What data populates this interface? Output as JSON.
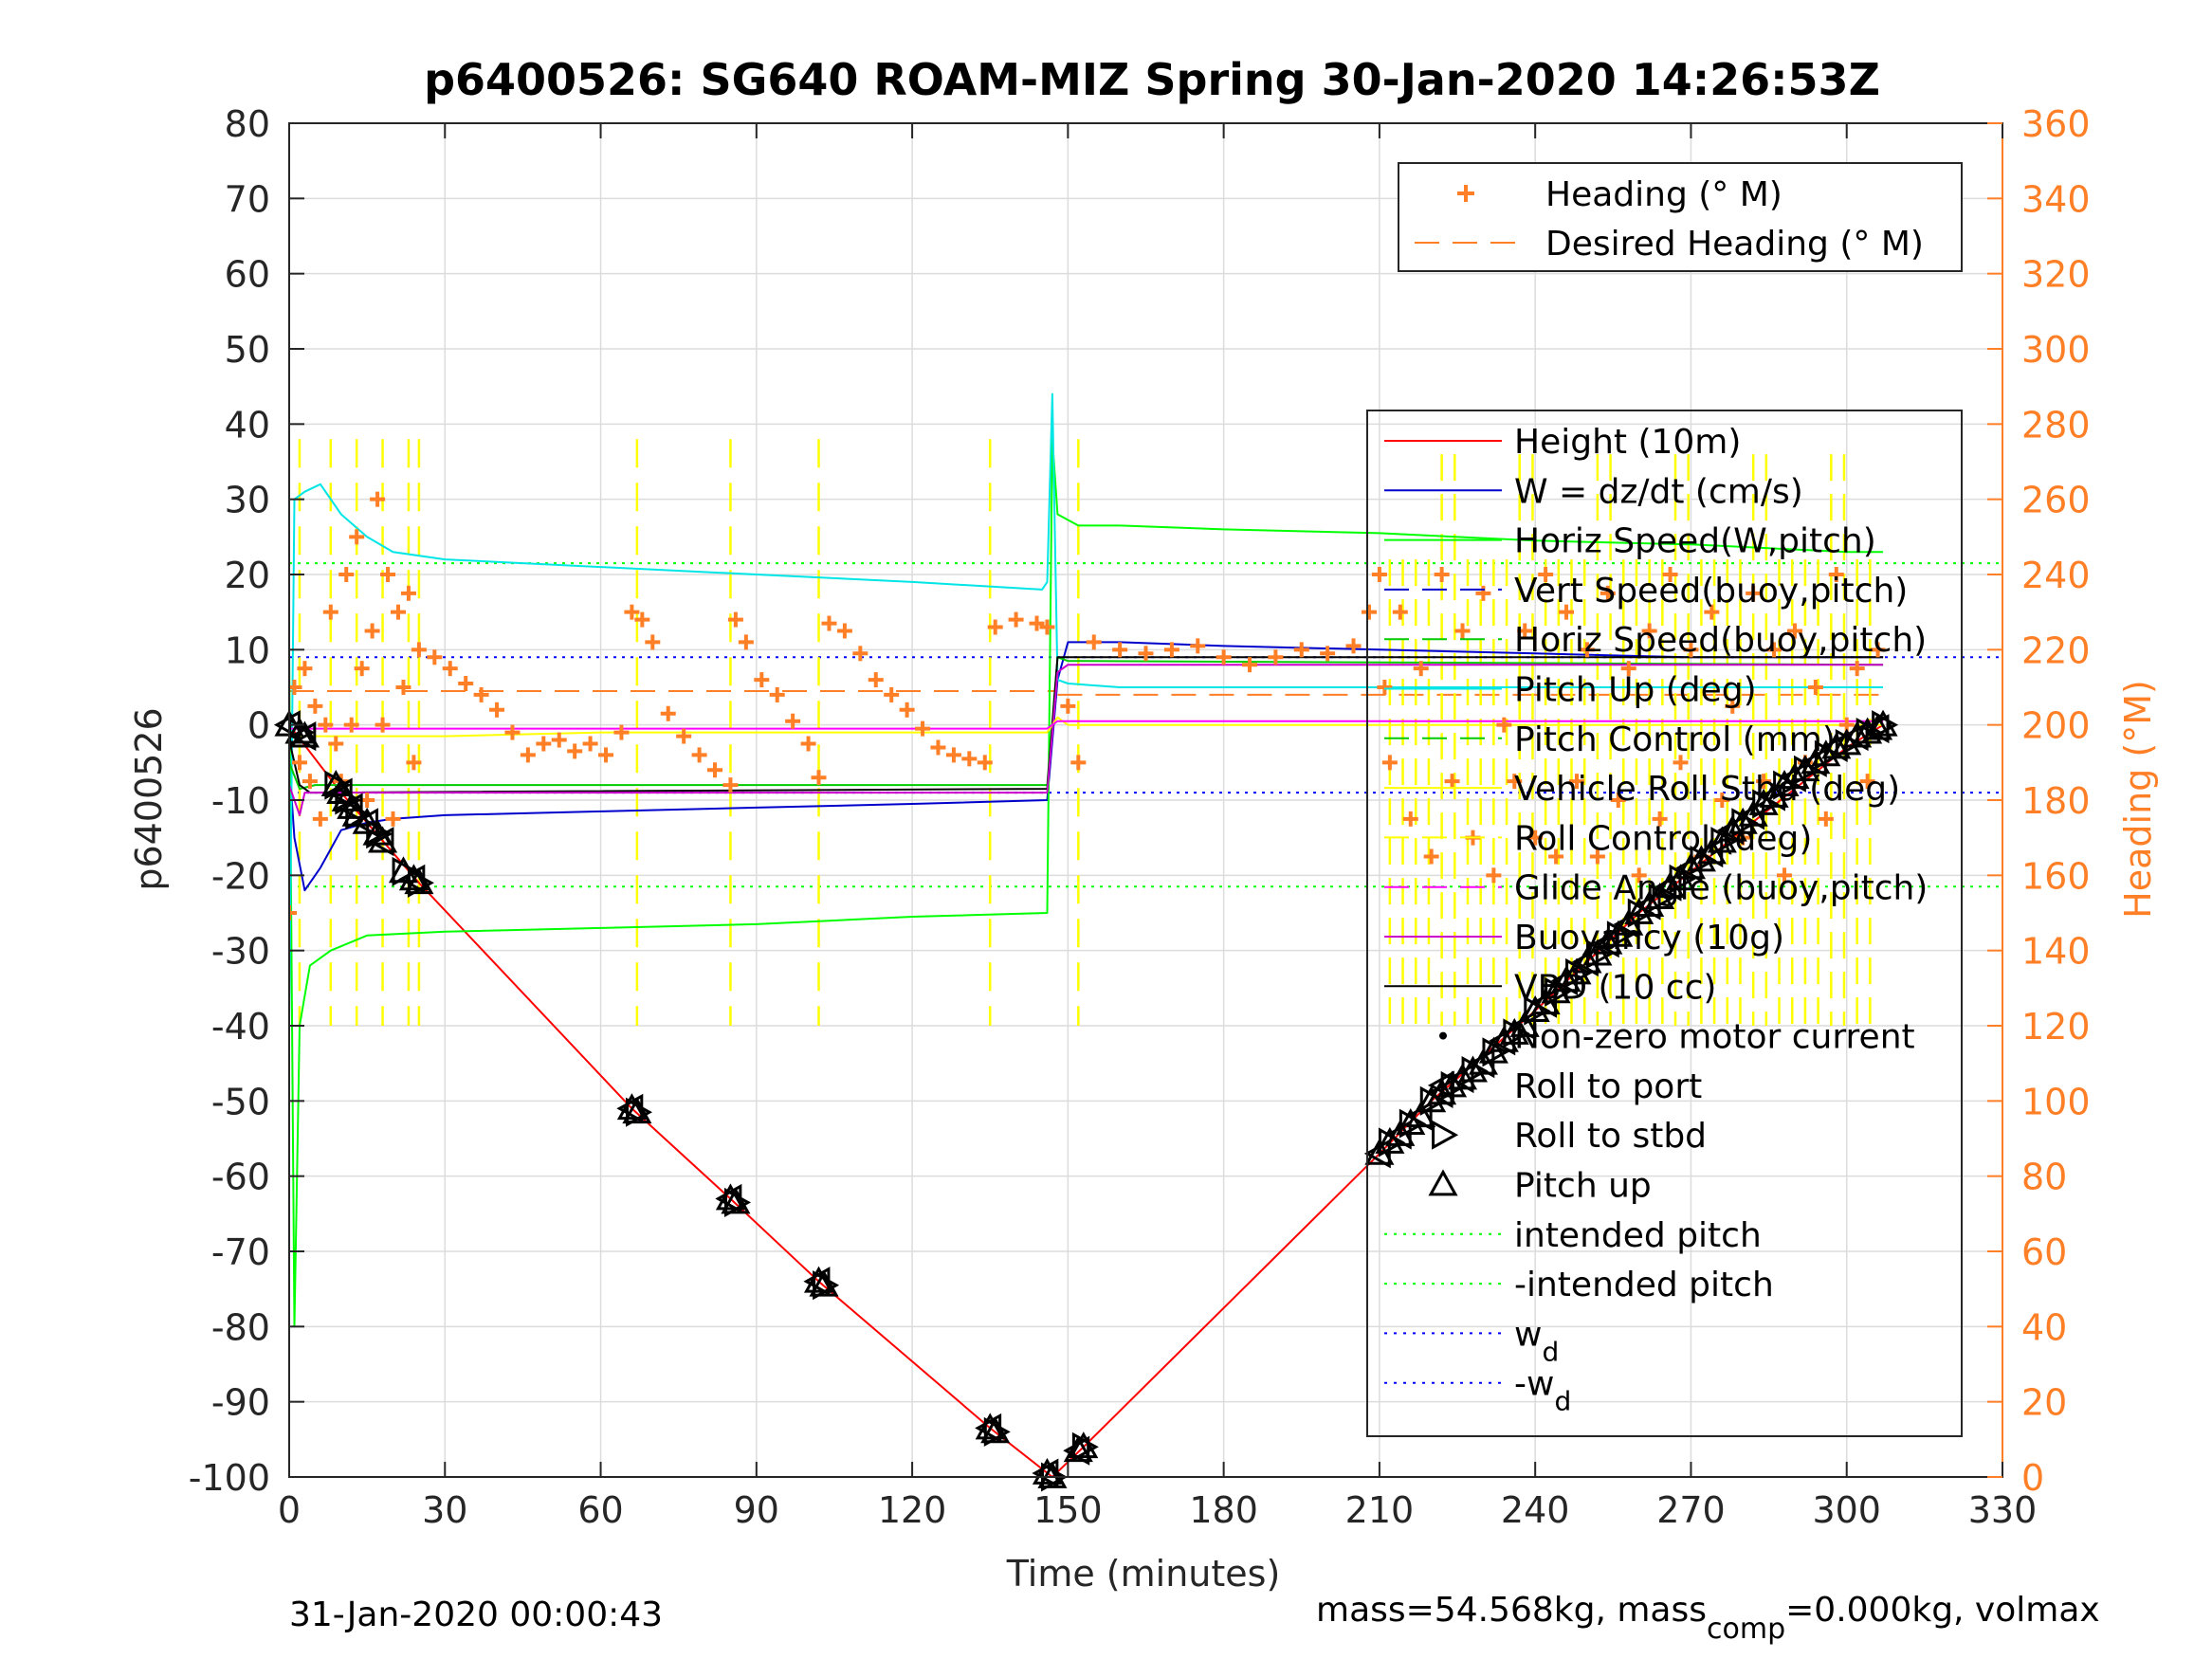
{
  "chart_data": {
    "type": "line",
    "title": "p6400526: SG640 ROAM-MIZ Spring 30-Jan-2020 14:26:53Z",
    "xlabel": "Time (minutes)",
    "ylabel_left": "p6400526",
    "ylabel_right": "Heading (°M)",
    "xlim": [
      0,
      330
    ],
    "ylim_left": [
      -100,
      80
    ],
    "ylim_right": [
      0,
      360
    ],
    "x_ticks": [
      0,
      30,
      60,
      90,
      120,
      150,
      180,
      210,
      240,
      270,
      300,
      330
    ],
    "y_ticks_left": [
      -100,
      -90,
      -80,
      -70,
      -60,
      -50,
      -40,
      -30,
      -20,
      -10,
      0,
      10,
      20,
      30,
      40,
      50,
      60,
      70,
      80
    ],
    "y_ticks_right": [
      0,
      20,
      40,
      60,
      80,
      100,
      120,
      140,
      160,
      180,
      200,
      220,
      240,
      260,
      280,
      300,
      320,
      340,
      360
    ],
    "grid": true,
    "footer_left": "31-Jan-2020 00:00:43",
    "footer_right": {
      "prefix": "mass=54.568kg, mass",
      "sub": "comp",
      "suffix": "=0.000kg, volmax"
    },
    "legend_top": [
      {
        "label": "Heading (° M)",
        "color": "#ff7f27",
        "style": "plus"
      },
      {
        "label": "Desired Heading (° M)",
        "color": "#ff7f27",
        "style": "dashed"
      }
    ],
    "legend_main": [
      {
        "label": "Height (10m)",
        "color": "#ff0000",
        "style": "solid"
      },
      {
        "label": "W = dz/dt (cm/s)",
        "color": "#0000cc",
        "style": "solid"
      },
      {
        "label": "Horiz Speed(W,pitch)",
        "color": "#00ff00",
        "style": "solid"
      },
      {
        "label": "Vert Speed(buoy,pitch)",
        "color": "#0000cc",
        "style": "dashed"
      },
      {
        "label": "Horiz Speed(buoy,pitch)",
        "color": "#00cc00",
        "style": "dashed"
      },
      {
        "label": "Pitch Up (deg)",
        "color": "#00e5e5",
        "style": "solid"
      },
      {
        "label": "Pitch Control (mm)",
        "color": "#00cc00",
        "style": "dashed"
      },
      {
        "label": "Vehicle Roll Stbd (deg)",
        "color": "#ffff00",
        "style": "solid"
      },
      {
        "label": "Roll Control (deg)",
        "color": "#ffff00",
        "style": "dashed"
      },
      {
        "label": "Glide Angle (buoy,pitch)",
        "color": "#ff00ff",
        "style": "dashed"
      },
      {
        "label": "Buoyancy (10g)",
        "color": "#cc00cc",
        "style": "solid"
      },
      {
        "label": "VBD (10 cc)",
        "color": "#000000",
        "style": "solid"
      },
      {
        "label": "Non-zero motor current",
        "color": "#000000",
        "style": "dot"
      },
      {
        "label": "Roll to port",
        "color": "#000000",
        "style": "tri-left"
      },
      {
        "label": "Roll to stbd",
        "color": "#000000",
        "style": "tri-right"
      },
      {
        "label": "Pitch up",
        "color": "#000000",
        "style": "tri-up"
      },
      {
        "label": "intended pitch",
        "color": "#00ff00",
        "style": "dotted"
      },
      {
        "label": "-intended pitch",
        "color": "#00ff00",
        "style": "dotted"
      },
      {
        "label": "w",
        "sub": "d",
        "color": "#0000ff",
        "style": "dotted"
      },
      {
        "label": "-w",
        "sub": "d",
        "color": "#0000ff",
        "style": "dotted"
      }
    ],
    "reference_lines": {
      "intended_pitch": 21.5,
      "minus_intended_pitch": -21.5,
      "w_d": 9,
      "minus_w_d": -9
    },
    "series": [
      {
        "key": "height",
        "name": "Height (10m)",
        "color": "#ff0000",
        "x": [
          0,
          10,
          25,
          66,
          85,
          102,
          135,
          147,
          153,
          210,
          220,
          240,
          260,
          280,
          300,
          307
        ],
        "y": [
          0,
          -9,
          -21,
          -51,
          -63,
          -74,
          -93.5,
          -100,
          -96,
          -57,
          -50,
          -38,
          -25,
          -14,
          -3,
          0
        ]
      },
      {
        "key": "w",
        "name": "W = dz/dt (cm/s)",
        "color": "#0000cc",
        "x": [
          0,
          1,
          3,
          6,
          10,
          15,
          20,
          30,
          60,
          90,
          120,
          146,
          148,
          150,
          160,
          180,
          210,
          240,
          270,
          300,
          307
        ],
        "y": [
          -5,
          -15,
          -22,
          -19,
          -14,
          -13,
          -12.5,
          -12,
          -11.5,
          -11,
          -10.5,
          -10,
          6,
          11,
          11,
          10.5,
          10,
          9.5,
          9,
          9,
          9
        ]
      },
      {
        "key": "horiz_speed",
        "name": "Horiz Speed(W,pitch)",
        "color": "#00ff00",
        "x": [
          0,
          1,
          2,
          4,
          8,
          15,
          30,
          60,
          90,
          120,
          146,
          147,
          148,
          152,
          160,
          180,
          210,
          240,
          270,
          300,
          307
        ],
        "y": [
          10,
          -80,
          -40,
          -32,
          -30,
          -28,
          -27.5,
          -27,
          -26.5,
          -25.5,
          -25,
          38,
          28,
          26.5,
          26.5,
          26,
          25.5,
          24.5,
          24,
          23,
          23
        ]
      },
      {
        "key": "pitch_up",
        "name": "Pitch Up (deg)",
        "color": "#00e5e5",
        "x": [
          0,
          1,
          3,
          6,
          10,
          15,
          20,
          30,
          60,
          90,
          120,
          145,
          146,
          147,
          148,
          150,
          160,
          180,
          210,
          240,
          270,
          300,
          307
        ],
        "y": [
          -40,
          30,
          31,
          32,
          28,
          25,
          23,
          22,
          21,
          20,
          19,
          18,
          19,
          44,
          6,
          5.5,
          5,
          5,
          5,
          5,
          5,
          5,
          5
        ]
      },
      {
        "key": "pitch_control",
        "name": "Pitch Control (mm)",
        "color": "#00cc00",
        "x": [
          0,
          2,
          5,
          146,
          148,
          150,
          307
        ],
        "y": [
          -5,
          -8.5,
          -8,
          -8,
          9,
          8.5,
          8
        ]
      },
      {
        "key": "vbd",
        "name": "VBD (10 cc)",
        "color": "#000000",
        "x": [
          0,
          2,
          4,
          146,
          147,
          148,
          307
        ],
        "y": [
          -2,
          -8,
          -9,
          -8.5,
          0,
          9,
          9
        ]
      },
      {
        "key": "buoyancy",
        "name": "Buoyancy (10g)",
        "color": "#cc00cc",
        "x": [
          0,
          2,
          3,
          146,
          148,
          150,
          307
        ],
        "y": [
          -8,
          -12,
          -9,
          -9,
          7,
          8,
          8
        ]
      },
      {
        "key": "roll_stbd",
        "name": "Vehicle Roll Stbd (deg)",
        "color": "#ffff00",
        "x": [
          0,
          30,
          60,
          90,
          120,
          146,
          148,
          150,
          180,
          210,
          240,
          270,
          300,
          307
        ],
        "y": [
          -1.5,
          -1.5,
          -1,
          -1,
          -1,
          -1,
          1,
          0,
          0,
          0,
          0,
          0,
          0,
          0
        ]
      },
      {
        "key": "glide_angle",
        "name": "Glide Angle (buoy,pitch)",
        "color": "#ff00ff",
        "x": [
          0,
          146,
          148,
          307
        ],
        "y": [
          -0.5,
          -0.5,
          0.5,
          0.5
        ]
      }
    ],
    "heading_samples": {
      "x": [
        0,
        1,
        2,
        3,
        4,
        5,
        6,
        7,
        8,
        9,
        10,
        11,
        12,
        13,
        14,
        15,
        16,
        17,
        18,
        19,
        20,
        21,
        22,
        23,
        24,
        25,
        28,
        31,
        34,
        37,
        40,
        43,
        46,
        49,
        52,
        55,
        58,
        61,
        64,
        66,
        68,
        70,
        73,
        76,
        79,
        82,
        85,
        86,
        88,
        91,
        94,
        97,
        100,
        102,
        104,
        107,
        110,
        113,
        116,
        119,
        122,
        125,
        128,
        131,
        134,
        136,
        140,
        144,
        146,
        150,
        152,
        155,
        160,
        165,
        170,
        175,
        180,
        185,
        190,
        195,
        200,
        205,
        208,
        210,
        211,
        212,
        214,
        216,
        218,
        220,
        222,
        224,
        226,
        228,
        230,
        232,
        234,
        236,
        238,
        240,
        242,
        244,
        246,
        248,
        250,
        252,
        254,
        256,
        258,
        260,
        262,
        264,
        266,
        268,
        270,
        272,
        274,
        276,
        278,
        280,
        282,
        284,
        286,
        288,
        290,
        292,
        294,
        296,
        298,
        300,
        302,
        304,
        306
      ],
      "y": [
        150,
        210,
        190,
        215,
        185,
        205,
        175,
        200,
        230,
        195,
        185,
        240,
        200,
        250,
        215,
        180,
        225,
        260,
        200,
        240,
        175,
        230,
        210,
        235,
        190,
        220,
        218,
        215,
        211,
        208,
        204,
        198,
        192,
        195,
        196,
        193,
        195,
        192,
        198,
        230,
        228,
        222,
        203,
        197,
        192,
        188,
        184,
        228,
        222,
        212,
        208,
        201,
        195,
        186,
        227,
        225,
        219,
        212,
        208,
        204,
        199,
        194,
        192,
        191,
        190,
        226,
        228,
        227,
        226,
        205,
        190,
        222,
        220,
        219,
        220,
        221,
        218,
        216,
        218,
        220,
        219,
        221,
        230,
        240,
        210,
        190,
        230,
        175,
        215,
        165,
        240,
        185,
        225,
        170,
        235,
        160,
        200,
        185,
        225,
        170,
        240,
        165,
        230,
        185,
        220,
        165,
        235,
        180,
        215,
        160,
        225,
        175,
        240,
        190,
        220,
        165,
        230,
        180,
        205,
        170,
        235,
        185,
        220,
        160,
        225,
        190,
        210,
        175,
        240,
        200,
        215,
        185,
        220
      ]
    },
    "markers": {
      "x": [
        0,
        2,
        3,
        9,
        10,
        11,
        12,
        13,
        15,
        17,
        18,
        22,
        24,
        25,
        66,
        67,
        85,
        86,
        102,
        103,
        135,
        136,
        146,
        147,
        152,
        153,
        210,
        212,
        214,
        216,
        218,
        220,
        222,
        224,
        226,
        228,
        230,
        232,
        234,
        236,
        238,
        240,
        242,
        244,
        246,
        248,
        250,
        252,
        254,
        256,
        258,
        260,
        262,
        264,
        266,
        268,
        270,
        272,
        274,
        276,
        278,
        280,
        282,
        284,
        286,
        288,
        290,
        292,
        294,
        296,
        298,
        300,
        302,
        304,
        306,
        307
      ],
      "y": [
        0,
        -1,
        -1.5,
        -8,
        -9,
        -10,
        -11,
        -12,
        -13,
        -14.5,
        -15.5,
        -19.5,
        -20.5,
        -21,
        -51,
        -51.5,
        -63,
        -63.5,
        -74,
        -74.5,
        -93.5,
        -94,
        -99.5,
        -100,
        -96.5,
        -96,
        -57,
        -55.5,
        -54.5,
        -53,
        -52,
        -50,
        -49,
        -48,
        -47,
        -46,
        -45,
        -43.5,
        -42,
        -41,
        -40,
        -38,
        -37,
        -35.5,
        -34,
        -33,
        -31.5,
        -30.5,
        -29,
        -28,
        -26.5,
        -25,
        -24,
        -23,
        -21.5,
        -20.5,
        -19,
        -18,
        -17,
        -15.5,
        -14,
        -13,
        -12,
        -10.5,
        -9.5,
        -8,
        -7,
        -6,
        -5,
        -4,
        -3,
        -2.5,
        -1.5,
        -1,
        -0.5,
        0
      ]
    },
    "roll_control_spikes_x": [
      2,
      8,
      13,
      18,
      23,
      25,
      67,
      85,
      102,
      135,
      152
    ]
  }
}
